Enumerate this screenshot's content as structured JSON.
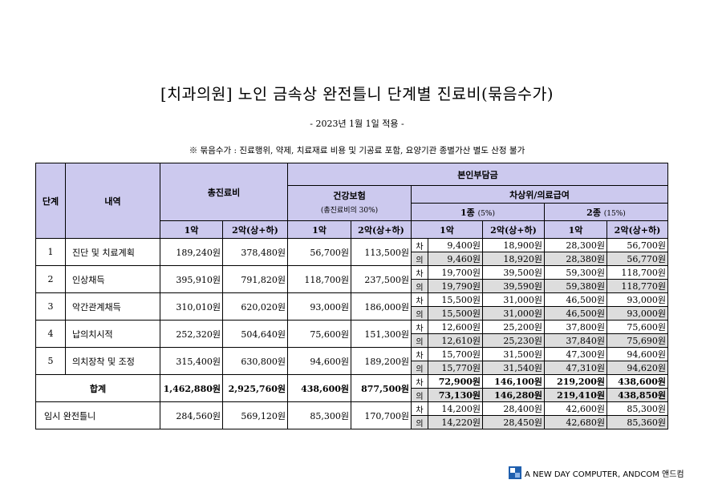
{
  "title": "[치과의원] 노인 금속상 완전틀니 단계별 진료비(묶음수가)",
  "subtitle": "- 2023년 1월 1일 적용 -",
  "note": "※ 묶음수가 : 진료행위, 약제, 치료재료 비용 및 기공료 포함, 요양기관 종별가산 별도 산정 불가",
  "header": {
    "stage": "단계",
    "detail": "내역",
    "total_fee": "총진료비",
    "copay": "본인부담금",
    "health_insurance": "건강보험",
    "health_insurance_note": "(총진료비의 30%)",
    "low_income": "차상위/의료급여",
    "class1": "1종",
    "class1_rate": "(5%)",
    "class2": "2종",
    "class2_rate": "(15%)",
    "col_1": "1악",
    "col_2": "2악(상+하)"
  },
  "rows": [
    {
      "stage": "1",
      "detail": "진단 및 치료계획",
      "total": [
        "189,240원",
        "378,480원"
      ],
      "health": [
        "56,700원",
        "113,500원"
      ],
      "cha": {
        "label": "차",
        "values": [
          "9,400원",
          "18,900원",
          "28,300원",
          "56,700원"
        ]
      },
      "ui": {
        "label": "의",
        "values": [
          "9,460원",
          "18,920원",
          "28,380원",
          "56,770원"
        ]
      }
    },
    {
      "stage": "2",
      "detail": "인상채득",
      "total": [
        "395,910원",
        "791,820원"
      ],
      "health": [
        "118,700원",
        "237,500원"
      ],
      "cha": {
        "label": "차",
        "values": [
          "19,700원",
          "39,500원",
          "59,300원",
          "118,700원"
        ]
      },
      "ui": {
        "label": "의",
        "values": [
          "19,790원",
          "39,590원",
          "59,380원",
          "118,770원"
        ]
      }
    },
    {
      "stage": "3",
      "detail": "악간관계채득",
      "total": [
        "310,010원",
        "620,020원"
      ],
      "health": [
        "93,000원",
        "186,000원"
      ],
      "cha": {
        "label": "차",
        "values": [
          "15,500원",
          "31,000원",
          "46,500원",
          "93,000원"
        ]
      },
      "ui": {
        "label": "의",
        "values": [
          "15,500원",
          "31,000원",
          "46,500원",
          "93,000원"
        ]
      }
    },
    {
      "stage": "4",
      "detail": "납의치시적",
      "total": [
        "252,320원",
        "504,640원"
      ],
      "health": [
        "75,600원",
        "151,300원"
      ],
      "cha": {
        "label": "차",
        "values": [
          "12,600원",
          "25,200원",
          "37,800원",
          "75,600원"
        ]
      },
      "ui": {
        "label": "의",
        "values": [
          "12,610원",
          "25,230원",
          "37,840원",
          "75,690원"
        ]
      }
    },
    {
      "stage": "5",
      "detail": "의치장착 및 조정",
      "total": [
        "315,400원",
        "630,800원"
      ],
      "health": [
        "94,600원",
        "189,200원"
      ],
      "cha": {
        "label": "차",
        "values": [
          "15,700원",
          "31,500원",
          "47,300원",
          "94,600원"
        ]
      },
      "ui": {
        "label": "의",
        "values": [
          "15,770원",
          "31,540원",
          "47,310원",
          "94,620원"
        ]
      }
    }
  ],
  "total_row": {
    "label": "합계",
    "total": [
      "1,462,880원",
      "2,925,760원"
    ],
    "health": [
      "438,600원",
      "877,500원"
    ],
    "cha": {
      "label": "차",
      "values": [
        "72,900원",
        "146,100원",
        "219,200원",
        "438,600원"
      ]
    },
    "ui": {
      "label": "의",
      "values": [
        "73,130원",
        "146,280원",
        "219,410원",
        "438,850원"
      ]
    }
  },
  "temp_row": {
    "label": "임시 완전틀니",
    "total": [
      "284,560원",
      "569,120원"
    ],
    "health": [
      "85,300원",
      "170,700원"
    ],
    "cha": {
      "label": "차",
      "values": [
        "14,200원",
        "28,400원",
        "42,600원",
        "85,300원"
      ]
    },
    "ui": {
      "label": "의",
      "values": [
        "14,220원",
        "28,450원",
        "42,680원",
        "85,360원"
      ]
    }
  },
  "footer": {
    "text": "A NEW DAY COMPUTER, ANDCOM 앤드컴",
    "logo_icon": "andcom-logo-icon",
    "logo_color": "#1f5fae"
  },
  "colors": {
    "header_bg": "#ccc9ee",
    "shaded_row_bg": "#dddddd"
  }
}
